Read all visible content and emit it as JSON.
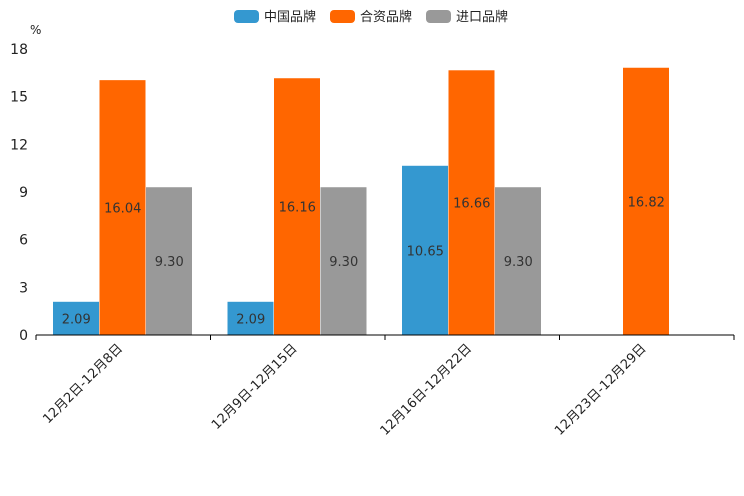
{
  "chart_data": {
    "type": "bar",
    "unit": "%",
    "categories": [
      "12月2日-12月8日",
      "12月9日-12月15日",
      "12月16日-12月22日",
      "12月23日-12月29日"
    ],
    "series": [
      {
        "name": "中国品牌",
        "color": "#3498d0",
        "values": [
          2.09,
          2.09,
          10.65,
          null
        ]
      },
      {
        "name": "合资品牌",
        "color": "#ff6600",
        "values": [
          16.04,
          16.16,
          16.66,
          16.82
        ]
      },
      {
        "name": "进口品牌",
        "color": "#999999",
        "values": [
          9.3,
          9.3,
          9.3,
          null
        ]
      }
    ],
    "ylim": [
      0,
      18
    ],
    "yticks": [
      0,
      3,
      6,
      9,
      12,
      15,
      18
    ],
    "legend_position": "top-center",
    "grid": false
  }
}
